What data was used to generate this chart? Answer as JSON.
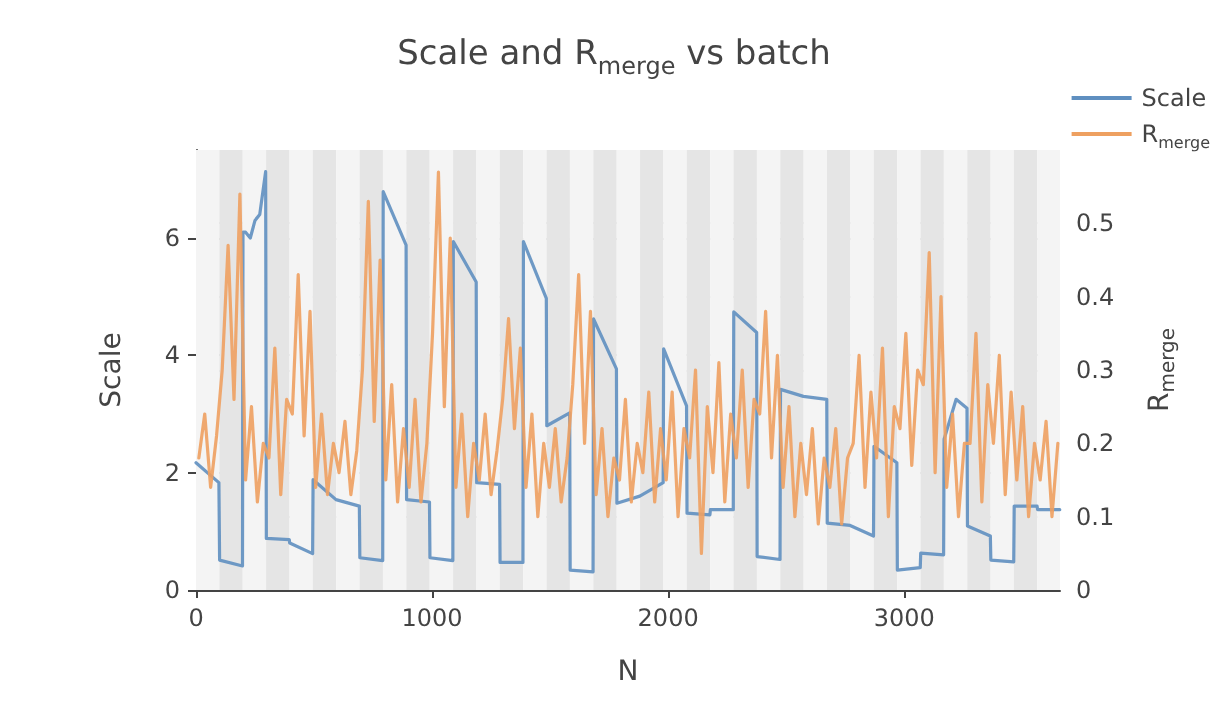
{
  "chart_data": {
    "type": "line",
    "title": "Scale and R$_{merge}$ vs batch",
    "xlabel": "N",
    "ylabel": "Scale",
    "y2label": "R$_{merge}$",
    "xlim": [
      0,
      3660
    ],
    "xticks": [
      0,
      1000,
      2000,
      3000
    ],
    "ylim": [
      0,
      7.5
    ],
    "yticks": [
      0,
      2,
      4,
      6
    ],
    "y2lim": [
      0,
      0.6
    ],
    "y2ticks": [
      0,
      0.1,
      0.2,
      0.3,
      0.4,
      0.5
    ],
    "grid": "y",
    "legend": "top right",
    "marker": "none",
    "line_style": "solid",
    "series": [
      {
        "name": "Scale",
        "color": "#5f8fc0",
        "x": [
          0,
          97,
          100,
          197,
          199,
          210,
          230,
          250,
          270,
          295,
          298,
          395,
          397,
          494,
          496,
          593,
          595,
          692,
          694,
          791,
          793,
          890,
          892,
          989,
          991,
          1088,
          1090,
          1187,
          1189,
          1286,
          1288,
          1385,
          1387,
          1484,
          1486,
          1583,
          1585,
          1682,
          1684,
          1781,
          1783,
          1880,
          1882,
          1979,
          1981,
          2078,
          2080,
          2177,
          2179,
          2276,
          2278,
          2375,
          2377,
          2474,
          2476,
          2573,
          2575,
          2672,
          2674,
          2771,
          2773,
          2870,
          2872,
          2969,
          2971,
          3068,
          3070,
          3167,
          3169,
          3220,
          3266,
          3268,
          3365,
          3367,
          3464,
          3466,
          3563,
          3565,
          3659
        ],
        "values": [
          2.17,
          1.83,
          0.51,
          0.41,
          6.1,
          6.1,
          6.0,
          6.3,
          6.4,
          7.13,
          0.88,
          0.86,
          0.8,
          0.62,
          1.88,
          1.54,
          1.54,
          1.43,
          0.55,
          0.5,
          6.79,
          5.88,
          1.54,
          1.5,
          0.55,
          0.5,
          5.94,
          5.25,
          1.83,
          1.8,
          0.47,
          0.47,
          5.94,
          4.97,
          2.8,
          3.02,
          0.34,
          0.31,
          4.62,
          3.77,
          1.48,
          1.6,
          1.6,
          1.83,
          4.11,
          3.14,
          1.31,
          1.28,
          1.37,
          1.37,
          4.74,
          4.39,
          0.57,
          0.52,
          3.42,
          3.3,
          3.3,
          3.25,
          1.14,
          1.1,
          1.1,
          0.92,
          2.45,
          2.17,
          0.34,
          0.38,
          0.63,
          0.6,
          2.57,
          3.25,
          3.1,
          1.09,
          0.92,
          0.51,
          0.48,
          1.43,
          1.43,
          1.37,
          1.37
        ]
      },
      {
        "name": "R$_{merge}$",
        "color": "#eea060",
        "axis": "y2",
        "x": [
          12,
          37,
          62,
          87,
          111,
          136,
          161,
          186,
          210,
          235,
          260,
          285,
          309,
          334,
          359,
          384,
          408,
          433,
          458,
          483,
          507,
          532,
          557,
          582,
          606,
          631,
          656,
          681,
          705,
          730,
          755,
          780,
          804,
          829,
          854,
          879,
          903,
          928,
          953,
          978,
          1002,
          1027,
          1052,
          1077,
          1101,
          1126,
          1151,
          1176,
          1200,
          1225,
          1250,
          1275,
          1299,
          1324,
          1349,
          1374,
          1398,
          1423,
          1448,
          1473,
          1497,
          1522,
          1547,
          1572,
          1596,
          1621,
          1646,
          1671,
          1695,
          1720,
          1745,
          1770,
          1794,
          1819,
          1844,
          1869,
          1893,
          1918,
          1943,
          1968,
          1992,
          2017,
          2042,
          2067,
          2091,
          2116,
          2141,
          2166,
          2190,
          2215,
          2240,
          2265,
          2289,
          2314,
          2339,
          2364,
          2388,
          2413,
          2438,
          2463,
          2487,
          2512,
          2537,
          2562,
          2586,
          2611,
          2636,
          2661,
          2685,
          2710,
          2735,
          2760,
          2784,
          2809,
          2834,
          2859,
          2883,
          2908,
          2933,
          2958,
          2982,
          3007,
          3032,
          3057,
          3081,
          3106,
          3131,
          3156,
          3180,
          3205,
          3230,
          3255,
          3279,
          3304,
          3329,
          3354,
          3378,
          3403,
          3428,
          3453,
          3477,
          3502,
          3527,
          3552,
          3576,
          3601,
          3626,
          3651
        ],
        "values": [
          0.18,
          0.24,
          0.14,
          0.21,
          0.3,
          0.47,
          0.26,
          0.54,
          0.15,
          0.25,
          0.12,
          0.2,
          0.18,
          0.33,
          0.13,
          0.26,
          0.24,
          0.43,
          0.21,
          0.38,
          0.14,
          0.24,
          0.13,
          0.2,
          0.16,
          0.23,
          0.13,
          0.19,
          0.3,
          0.53,
          0.23,
          0.45,
          0.15,
          0.28,
          0.12,
          0.22,
          0.14,
          0.26,
          0.12,
          0.2,
          0.35,
          0.57,
          0.25,
          0.48,
          0.14,
          0.24,
          0.1,
          0.2,
          0.15,
          0.24,
          0.13,
          0.19,
          0.26,
          0.37,
          0.22,
          0.33,
          0.14,
          0.24,
          0.1,
          0.2,
          0.14,
          0.22,
          0.12,
          0.18,
          0.28,
          0.43,
          0.2,
          0.38,
          0.13,
          0.22,
          0.1,
          0.18,
          0.15,
          0.26,
          0.12,
          0.2,
          0.16,
          0.27,
          0.12,
          0.22,
          0.15,
          0.27,
          0.1,
          0.22,
          0.18,
          0.3,
          0.05,
          0.25,
          0.16,
          0.31,
          0.12,
          0.24,
          0.18,
          0.3,
          0.14,
          0.26,
          0.24,
          0.38,
          0.18,
          0.32,
          0.14,
          0.25,
          0.1,
          0.2,
          0.13,
          0.22,
          0.09,
          0.18,
          0.14,
          0.22,
          0.09,
          0.18,
          0.2,
          0.32,
          0.14,
          0.27,
          0.18,
          0.33,
          0.1,
          0.25,
          0.22,
          0.35,
          0.17,
          0.3,
          0.28,
          0.46,
          0.16,
          0.4,
          0.14,
          0.24,
          0.1,
          0.2,
          0.2,
          0.35,
          0.12,
          0.28,
          0.2,
          0.32,
          0.13,
          0.27,
          0.15,
          0.25,
          0.1,
          0.2,
          0.15,
          0.23,
          0.1,
          0.2
        ]
      }
    ],
    "bands": [
      {
        "axis": "x",
        "from": 0,
        "to": 99,
        "color": "#f4f4f4"
      },
      {
        "axis": "x",
        "from": 99,
        "to": 198,
        "color": "#e5e5e5"
      },
      {
        "axis": "x",
        "from": 198,
        "to": 297,
        "color": "#f4f4f4"
      },
      {
        "axis": "x",
        "from": 297,
        "to": 396,
        "color": "#e5e5e5"
      },
      {
        "axis": "x",
        "from": 396,
        "to": 495,
        "color": "#f4f4f4"
      },
      {
        "axis": "x",
        "from": 495,
        "to": 594,
        "color": "#e5e5e5"
      },
      {
        "axis": "x",
        "from": 594,
        "to": 693,
        "color": "#f4f4f4"
      },
      {
        "axis": "x",
        "from": 693,
        "to": 792,
        "color": "#e5e5e5"
      },
      {
        "axis": "x",
        "from": 792,
        "to": 891,
        "color": "#f4f4f4"
      },
      {
        "axis": "x",
        "from": 891,
        "to": 990,
        "color": "#e5e5e5"
      },
      {
        "axis": "x",
        "from": 990,
        "to": 1089,
        "color": "#f4f4f4"
      },
      {
        "axis": "x",
        "from": 1089,
        "to": 1188,
        "color": "#e5e5e5"
      },
      {
        "axis": "x",
        "from": 1188,
        "to": 1287,
        "color": "#f4f4f4"
      },
      {
        "axis": "x",
        "from": 1287,
        "to": 1386,
        "color": "#e5e5e5"
      },
      {
        "axis": "x",
        "from": 1386,
        "to": 1485,
        "color": "#f4f4f4"
      },
      {
        "axis": "x",
        "from": 1485,
        "to": 1584,
        "color": "#e5e5e5"
      },
      {
        "axis": "x",
        "from": 1584,
        "to": 1683,
        "color": "#f4f4f4"
      },
      {
        "axis": "x",
        "from": 1683,
        "to": 1782,
        "color": "#e5e5e5"
      },
      {
        "axis": "x",
        "from": 1782,
        "to": 1881,
        "color": "#f4f4f4"
      },
      {
        "axis": "x",
        "from": 1881,
        "to": 1980,
        "color": "#e5e5e5"
      },
      {
        "axis": "x",
        "from": 1980,
        "to": 2079,
        "color": "#f4f4f4"
      },
      {
        "axis": "x",
        "from": 2079,
        "to": 2178,
        "color": "#e5e5e5"
      },
      {
        "axis": "x",
        "from": 2178,
        "to": 2277,
        "color": "#f4f4f4"
      },
      {
        "axis": "x",
        "from": 2277,
        "to": 2376,
        "color": "#e5e5e5"
      },
      {
        "axis": "x",
        "from": 2376,
        "to": 2475,
        "color": "#f4f4f4"
      },
      {
        "axis": "x",
        "from": 2475,
        "to": 2574,
        "color": "#e5e5e5"
      },
      {
        "axis": "x",
        "from": 2574,
        "to": 2673,
        "color": "#f4f4f4"
      },
      {
        "axis": "x",
        "from": 2673,
        "to": 2772,
        "color": "#e5e5e5"
      },
      {
        "axis": "x",
        "from": 2772,
        "to": 2871,
        "color": "#f4f4f4"
      },
      {
        "axis": "x",
        "from": 2871,
        "to": 2970,
        "color": "#e5e5e5"
      },
      {
        "axis": "x",
        "from": 2970,
        "to": 3069,
        "color": "#f4f4f4"
      },
      {
        "axis": "x",
        "from": 3069,
        "to": 3168,
        "color": "#e5e5e5"
      },
      {
        "axis": "x",
        "from": 3168,
        "to": 3267,
        "color": "#f4f4f4"
      },
      {
        "axis": "x",
        "from": 3267,
        "to": 3366,
        "color": "#e5e5e5"
      },
      {
        "axis": "x",
        "from": 3366,
        "to": 3465,
        "color": "#f4f4f4"
      },
      {
        "axis": "x",
        "from": 3465,
        "to": 3564,
        "color": "#e5e5e5"
      },
      {
        "axis": "x",
        "from": 3564,
        "to": 3660,
        "color": "#f4f4f4"
      }
    ]
  }
}
